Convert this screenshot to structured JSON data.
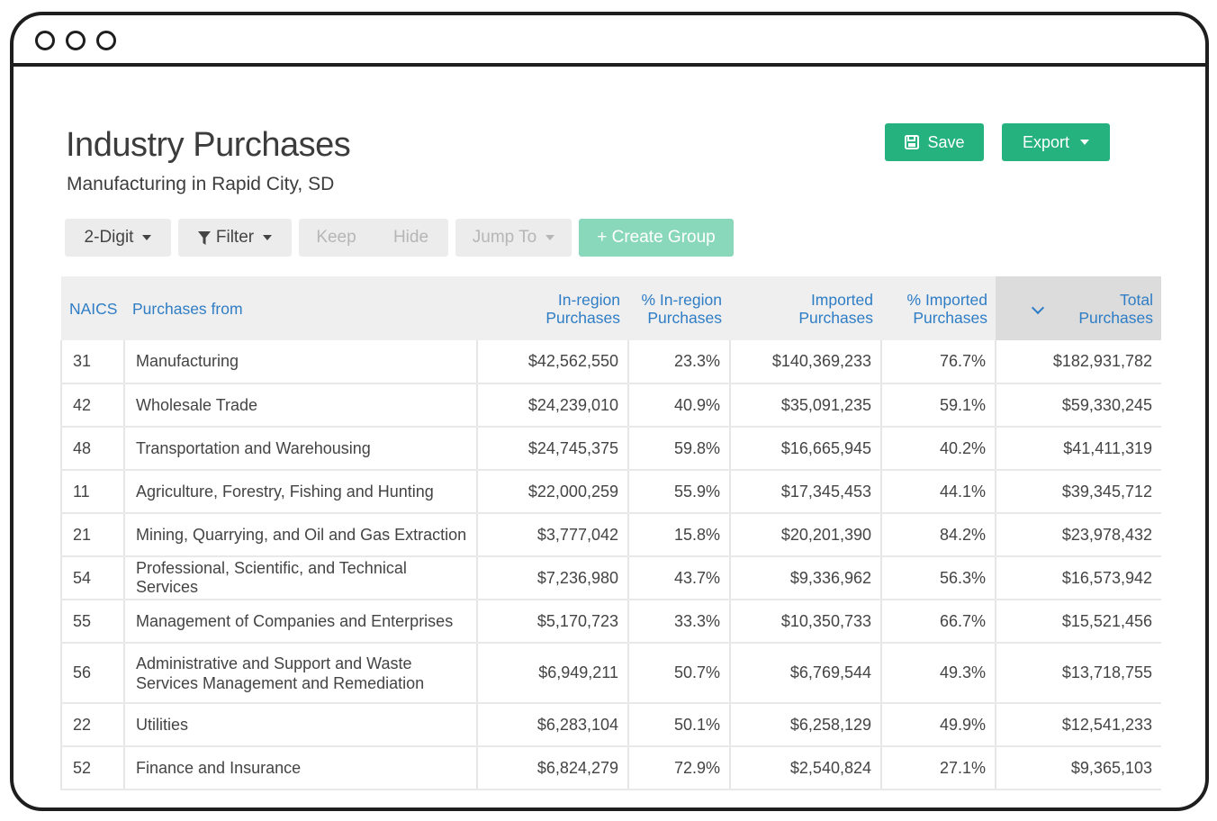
{
  "page": {
    "title": "Industry Purchases",
    "subtitle": "Manufacturing in Rapid City, SD"
  },
  "actions": {
    "save_label": "Save",
    "export_label": "Export"
  },
  "toolbar": {
    "digit_label": "2-Digit",
    "filter_label": "Filter",
    "keep_label": "Keep",
    "hide_label": "Hide",
    "jump_label": "Jump To",
    "create_group_label": "+ Create Group"
  },
  "table": {
    "headers": {
      "naics": "NAICS",
      "purchases_from": "Purchases from",
      "inregion_1": "In-region",
      "inregion_2": "Purchases",
      "pct_inregion_1": "% In-region",
      "pct_inregion_2": "Purchases",
      "imported_1": "Imported",
      "imported_2": "Purchases",
      "pct_imported_1": "% Imported",
      "pct_imported_2": "Purchases",
      "total_1": "Total",
      "total_2": "Purchases"
    },
    "rows": [
      {
        "naics": "31",
        "name": "Manufacturing",
        "inregion": "$42,562,550",
        "pct_inregion": "23.3%",
        "imported": "$140,369,233",
        "pct_imported": "76.7%",
        "total": "$182,931,782"
      },
      {
        "naics": "42",
        "name": "Wholesale Trade",
        "inregion": "$24,239,010",
        "pct_inregion": "40.9%",
        "imported": "$35,091,235",
        "pct_imported": "59.1%",
        "total": "$59,330,245"
      },
      {
        "naics": "48",
        "name": "Transportation and Warehousing",
        "inregion": "$24,745,375",
        "pct_inregion": "59.8%",
        "imported": "$16,665,945",
        "pct_imported": "40.2%",
        "total": "$41,411,319"
      },
      {
        "naics": "11",
        "name": "Agriculture, Forestry, Fishing and Hunting",
        "inregion": "$22,000,259",
        "pct_inregion": "55.9%",
        "imported": "$17,345,453",
        "pct_imported": "44.1%",
        "total": "$39,345,712"
      },
      {
        "naics": "21",
        "name": "Mining, Quarrying, and Oil and Gas Extraction",
        "inregion": "$3,777,042",
        "pct_inregion": "15.8%",
        "imported": "$20,201,390",
        "pct_imported": "84.2%",
        "total": "$23,978,432"
      },
      {
        "naics": "54",
        "name": "Professional, Scientific, and Technical Services",
        "inregion": "$7,236,980",
        "pct_inregion": "43.7%",
        "imported": "$9,336,962",
        "pct_imported": "56.3%",
        "total": "$16,573,942"
      },
      {
        "naics": "55",
        "name": "Management of Companies and Enterprises",
        "inregion": "$5,170,723",
        "pct_inregion": "33.3%",
        "imported": "$10,350,733",
        "pct_imported": "66.7%",
        "total": "$15,521,456"
      },
      {
        "naics": "56",
        "name": "Administrative and Support and Waste Services Management and Remediation",
        "inregion": "$6,949,211",
        "pct_inregion": "50.7%",
        "imported": "$6,769,544",
        "pct_imported": "49.3%",
        "total": "$13,718,755"
      },
      {
        "naics": "22",
        "name": "Utilities",
        "inregion": "$6,283,104",
        "pct_inregion": "50.1%",
        "imported": "$6,258,129",
        "pct_imported": "49.9%",
        "total": "$12,541,233"
      },
      {
        "naics": "52",
        "name": "Finance and Insurance",
        "inregion": "$6,824,279",
        "pct_inregion": "72.9%",
        "imported": "$2,540,824",
        "pct_imported": "27.1%",
        "total": "$9,365,103"
      }
    ]
  },
  "colors": {
    "accent": "#25b27f",
    "accent_disabled": "#8ad8bc",
    "header_text": "#2f7dc5"
  }
}
